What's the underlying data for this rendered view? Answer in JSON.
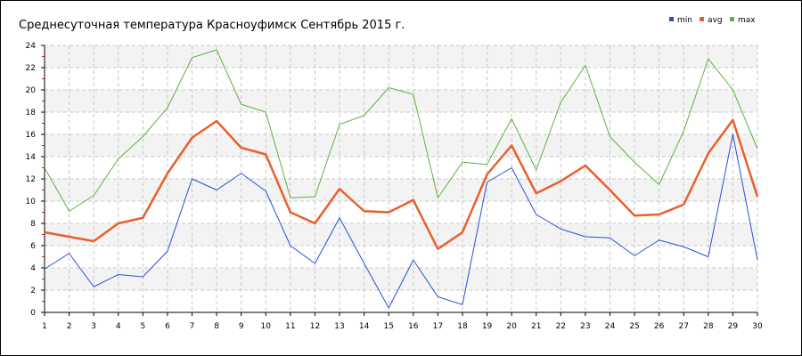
{
  "chart_data": {
    "type": "line",
    "title": "Среднесуточная температура Красноуфимск  Сентябрь 2015 г.",
    "xlabel": "",
    "ylabel": "",
    "x": [
      1,
      2,
      3,
      4,
      5,
      6,
      7,
      8,
      9,
      10,
      11,
      12,
      13,
      14,
      15,
      16,
      17,
      18,
      19,
      20,
      21,
      22,
      23,
      24,
      25,
      26,
      27,
      28,
      29,
      30
    ],
    "xlim": [
      1,
      30
    ],
    "ylim": [
      0,
      24
    ],
    "yticks": [
      0,
      2,
      4,
      6,
      8,
      10,
      12,
      14,
      16,
      18,
      20,
      22,
      24
    ],
    "grid": true,
    "legend_position": "top-right",
    "series": [
      {
        "name": "min",
        "color": "#2a4fd6",
        "values": [
          3.9,
          5.3,
          2.3,
          3.4,
          3.2,
          5.5,
          12.0,
          11.0,
          12.5,
          10.9,
          6.0,
          4.4,
          8.5,
          4.4,
          0.4,
          4.7,
          1.4,
          0.7,
          11.7,
          13.0,
          8.8,
          7.5,
          6.8,
          6.7,
          5.1,
          6.5,
          5.9,
          5.0,
          16.0,
          4.7
        ]
      },
      {
        "name": "avg",
        "color": "#e8602c",
        "values": [
          7.2,
          6.8,
          6.4,
          8.0,
          8.5,
          12.5,
          15.7,
          17.2,
          14.8,
          14.2,
          9.0,
          8.0,
          11.1,
          9.1,
          9.0,
          10.1,
          5.7,
          7.2,
          12.4,
          15.0,
          10.7,
          11.8,
          13.2,
          11.0,
          8.7,
          8.8,
          9.7,
          14.3,
          17.3,
          10.4
        ]
      },
      {
        "name": "max",
        "color": "#5fb043",
        "values": [
          13.0,
          9.1,
          10.5,
          13.8,
          15.8,
          18.4,
          22.9,
          23.6,
          18.7,
          18.0,
          10.3,
          10.4,
          16.9,
          17.7,
          20.2,
          19.6,
          10.3,
          13.5,
          13.3,
          17.4,
          12.8,
          18.9,
          22.2,
          15.8,
          13.5,
          11.5,
          16.3,
          22.8,
          20.0,
          14.7
        ]
      }
    ]
  }
}
